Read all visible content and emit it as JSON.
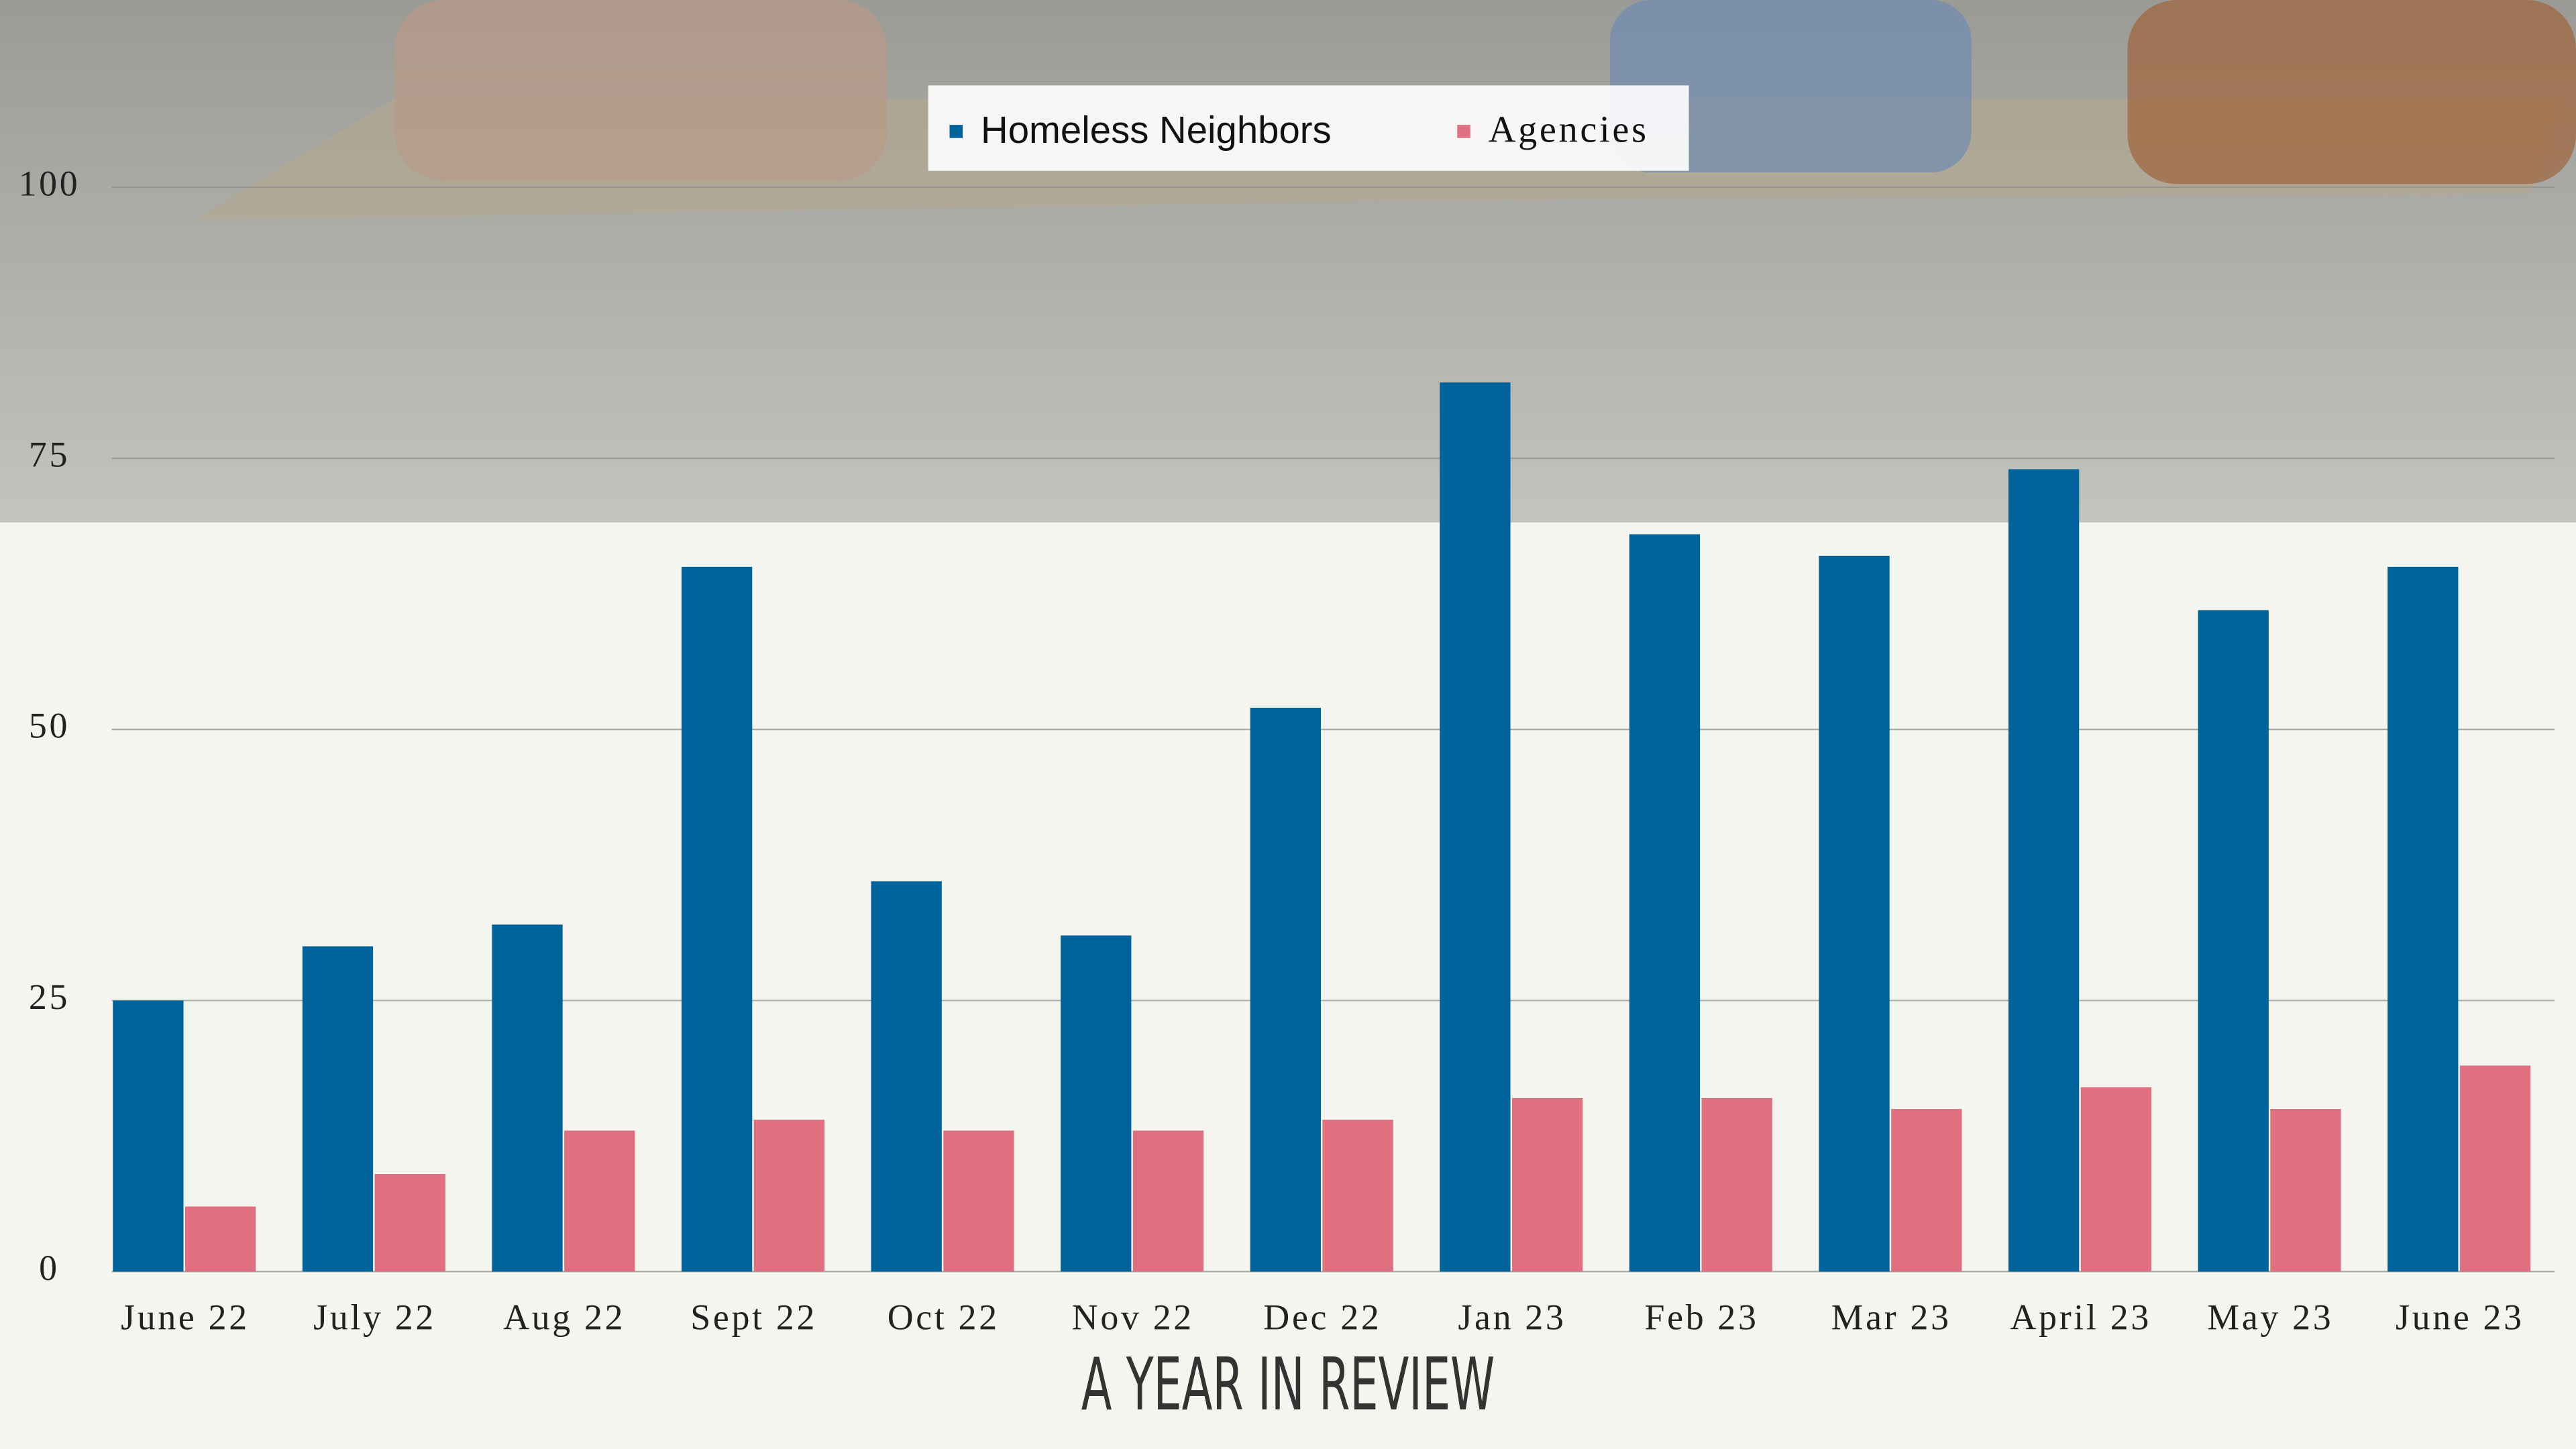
{
  "chart_data": {
    "type": "bar",
    "title": "A YEAR IN REVIEW",
    "categories": [
      "June 22",
      "July 22",
      "Aug 22",
      "Sept 22",
      "Oct 22",
      "Nov 22",
      "Dec 22",
      "Jan 23",
      "Feb 23",
      "Mar 23",
      "April 23",
      "May 23",
      "June 23"
    ],
    "series": [
      {
        "name": "Homeless Neighbors",
        "color": "#00639b",
        "values": [
          25,
          30,
          32,
          65,
          36,
          31,
          52,
          82,
          68,
          66,
          74,
          61,
          65
        ]
      },
      {
        "name": "Agencies",
        "color": "#e07080",
        "values": [
          6,
          9,
          13,
          14,
          13,
          13,
          14,
          16,
          16,
          15,
          17,
          15,
          19
        ]
      }
    ],
    "ylim": [
      0,
      100
    ],
    "yticks": [
      0,
      25,
      50,
      75,
      100
    ],
    "grid": true,
    "legend": "top"
  }
}
